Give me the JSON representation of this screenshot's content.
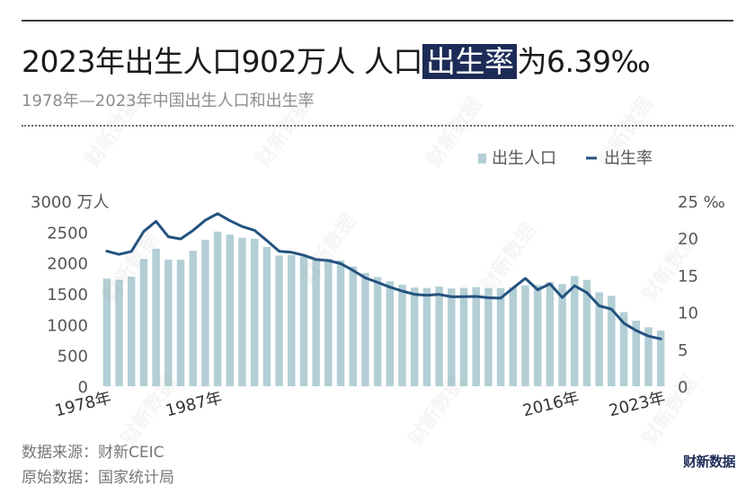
{
  "header": {
    "title_pre": "2023年出生人口902万人 人口",
    "title_highlight": "出生率",
    "title_post": "为6.39‰",
    "subtitle": "1978年—2023年中国出生人口和出生率"
  },
  "footer": {
    "source": "数据来源：财新CEIC",
    "origin": "原始数据：国家统计局",
    "brand": "财新数据"
  },
  "watermark": "财新数据",
  "colors": {
    "bar": "#b3cfd5",
    "line": "#23527f",
    "highlight": "#1d2c57",
    "text": "#555555"
  },
  "chart_data": {
    "type": "bar",
    "legend_placement": "top-right",
    "legend": [
      "出生人口",
      "出生率"
    ],
    "left_axis_unit": "万人",
    "right_axis_unit": "‰",
    "ylim_left": [
      0,
      3000
    ],
    "ylim_right": [
      0,
      25
    ],
    "yticks_left": [
      0,
      500,
      1000,
      1500,
      2000,
      2500,
      3000
    ],
    "yticks_right": [
      0,
      5,
      10,
      15,
      20,
      25
    ],
    "x_tick_labels": [
      {
        "year": 1978,
        "label": "1978年"
      },
      {
        "year": 1987,
        "label": "1987年"
      },
      {
        "year": 2016,
        "label": "2016年"
      },
      {
        "year": 2023,
        "label": "2023年"
      }
    ],
    "years": [
      1978,
      1979,
      1980,
      1981,
      1982,
      1983,
      1984,
      1985,
      1986,
      1987,
      1988,
      1989,
      1990,
      1991,
      1992,
      1993,
      1994,
      1995,
      1996,
      1997,
      1998,
      1999,
      2000,
      2001,
      2002,
      2003,
      2004,
      2005,
      2006,
      2007,
      2008,
      2009,
      2010,
      2011,
      2012,
      2013,
      2014,
      2015,
      2016,
      2017,
      2018,
      2019,
      2020,
      2021,
      2022,
      2023
    ],
    "series": [
      {
        "name": "出生人口",
        "kind": "bar",
        "axis": "left",
        "values": [
          1745,
          1727,
          1776,
          2064,
          2230,
          2052,
          2050,
          2196,
          2374,
          2508,
          2457,
          2407,
          2391,
          2258,
          2119,
          2126,
          2104,
          2063,
          2067,
          2038,
          1942,
          1834,
          1771,
          1702,
          1647,
          1599,
          1593,
          1617,
          1585,
          1595,
          1608,
          1591,
          1592,
          1604,
          1635,
          1640,
          1687,
          1655,
          1786,
          1723,
          1523,
          1465,
          1202,
          1062,
          956,
          902
        ]
      },
      {
        "name": "出生率",
        "kind": "line",
        "axis": "right",
        "values": [
          18.25,
          17.82,
          18.21,
          20.91,
          22.28,
          20.19,
          19.9,
          21.04,
          22.43,
          23.33,
          22.37,
          21.58,
          21.06,
          19.68,
          18.24,
          18.09,
          17.7,
          17.12,
          16.98,
          16.57,
          15.64,
          14.64,
          14.03,
          13.38,
          12.86,
          12.41,
          12.29,
          12.4,
          12.09,
          12.1,
          12.14,
          11.95,
          11.9,
          13.27,
          14.57,
          13.03,
          13.83,
          11.99,
          13.57,
          12.64,
          10.86,
          10.41,
          8.52,
          7.52,
          6.77,
          6.39
        ]
      }
    ]
  }
}
